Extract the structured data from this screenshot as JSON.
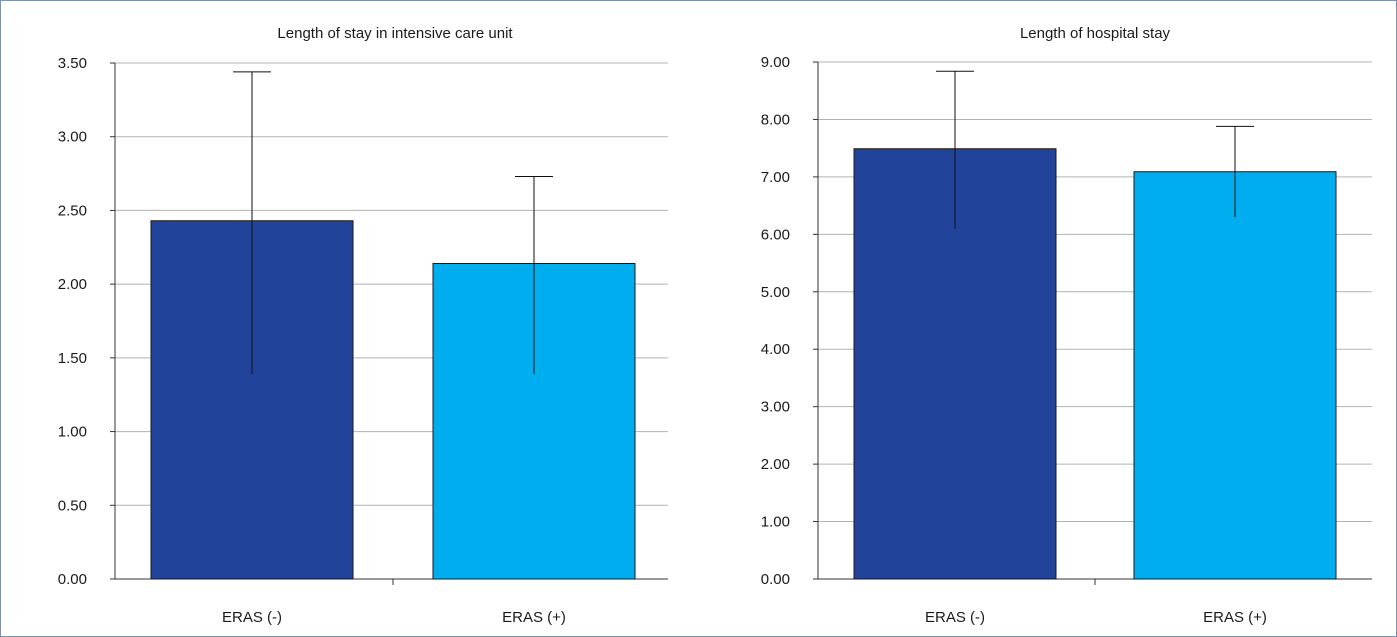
{
  "chart_data": [
    {
      "type": "bar",
      "title": "Length of stay in intensive care unit",
      "xlabel": "",
      "ylabel": "",
      "categories": [
        "ERAS (-)",
        "ERAS (+)"
      ],
      "values": [
        2.43,
        2.14
      ],
      "error_upper": [
        3.44,
        2.73
      ],
      "error_lower": [
        1.39,
        1.39
      ],
      "ylim": [
        0,
        3.5
      ],
      "yticks": [
        "0.00",
        "0.50",
        "1.00",
        "1.50",
        "2.00",
        "2.50",
        "3.00",
        "3.50"
      ],
      "ytick_values": [
        0,
        0.5,
        1,
        1.5,
        2,
        2.5,
        3,
        3.5
      ],
      "colors": [
        "#21439a",
        "#00adee"
      ],
      "grid": true
    },
    {
      "type": "bar",
      "title": "Length of hospital stay",
      "xlabel": "",
      "ylabel": "",
      "categories": [
        "ERAS (-)",
        "ERAS (+)"
      ],
      "values": [
        7.49,
        7.09
      ],
      "error_upper": [
        8.84,
        7.88
      ],
      "error_lower": [
        6.1,
        6.3
      ],
      "ylim": [
        0,
        9
      ],
      "yticks": [
        "0.00",
        "1.00",
        "2.00",
        "3.00",
        "4.00",
        "5.00",
        "6.00",
        "7.00",
        "8.00",
        "9.00"
      ],
      "ytick_values": [
        0,
        1,
        2,
        3,
        4,
        5,
        6,
        7,
        8,
        9
      ],
      "colors": [
        "#21439a",
        "#00adee"
      ],
      "grid": true
    }
  ]
}
